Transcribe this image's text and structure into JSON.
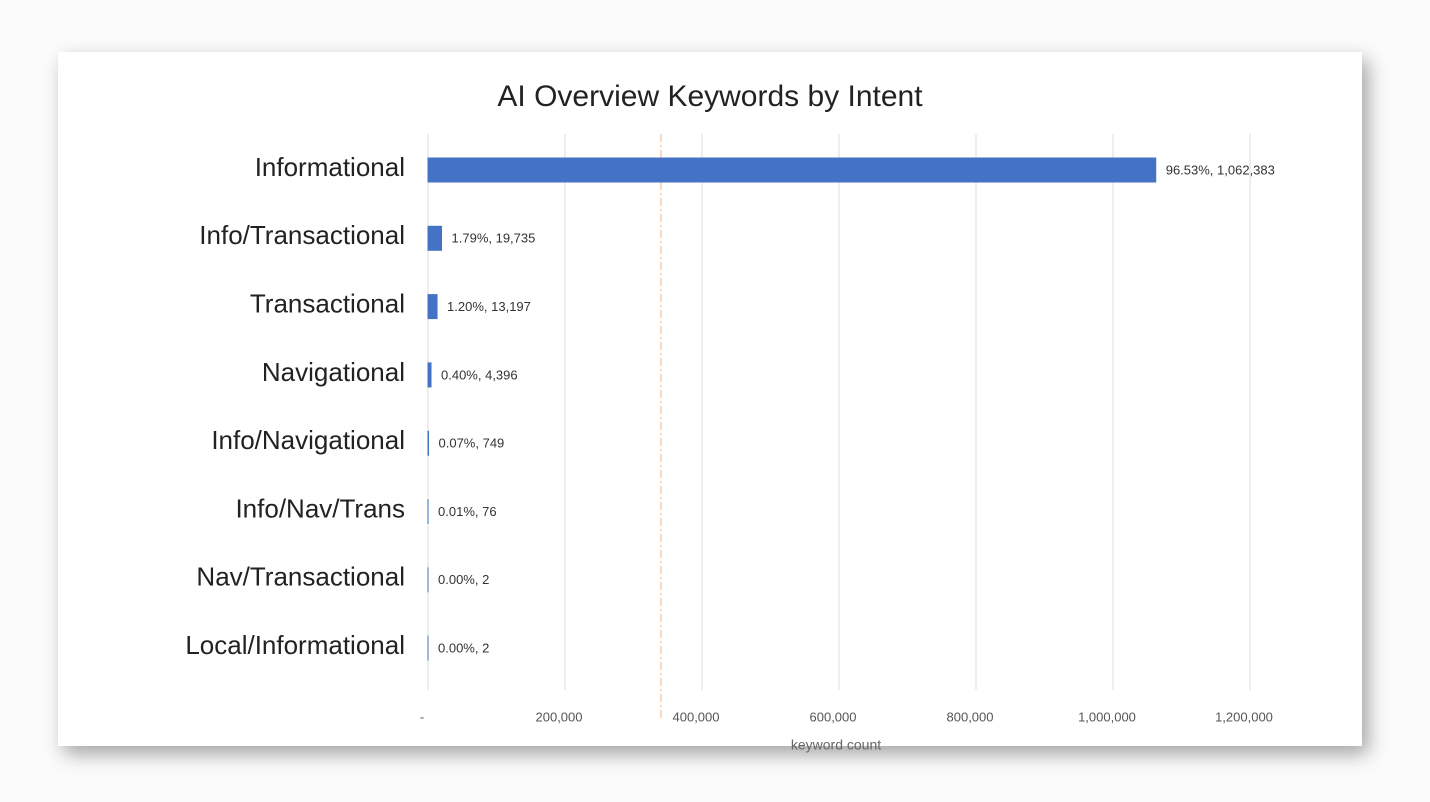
{
  "chart_data": {
    "type": "hbar",
    "title": "AI Overview Keywords by Intent",
    "categories": [
      "Informational",
      "Info/Transactional",
      "Transactional",
      "Navigational",
      "Info/Navigational",
      "Info/Nav/Trans",
      "Nav/Transactional",
      "Local/Informational"
    ],
    "values": [
      1062383,
      19735,
      13197,
      4396,
      749,
      76,
      2,
      2
    ],
    "value_labels": [
      "96.53%, 1,062,383",
      "1.79%, 19,735",
      "1.20%, 13,197",
      "0.40%, 4,396",
      "0.07%, 749",
      "0.01%, 76",
      "0.00%, 2",
      "0.00%, 2"
    ],
    "color": "#4472c4",
    "xlabel": "keyword count",
    "xlim": [
      0,
      1200000
    ],
    "xticks": [
      {
        "value": 0,
        "label": "-"
      },
      {
        "value": 200000,
        "label": "200,000"
      },
      {
        "value": 400000,
        "label": "400,000"
      },
      {
        "value": 600000,
        "label": "600,000"
      },
      {
        "value": 800000,
        "label": "800,000"
      },
      {
        "value": 1000000,
        "label": "1,000,000"
      },
      {
        "value": 1200000,
        "label": "1,200,000"
      }
    ],
    "grid": true,
    "reference_line": {
      "value": 340000,
      "color": "#f4cbb0"
    }
  }
}
